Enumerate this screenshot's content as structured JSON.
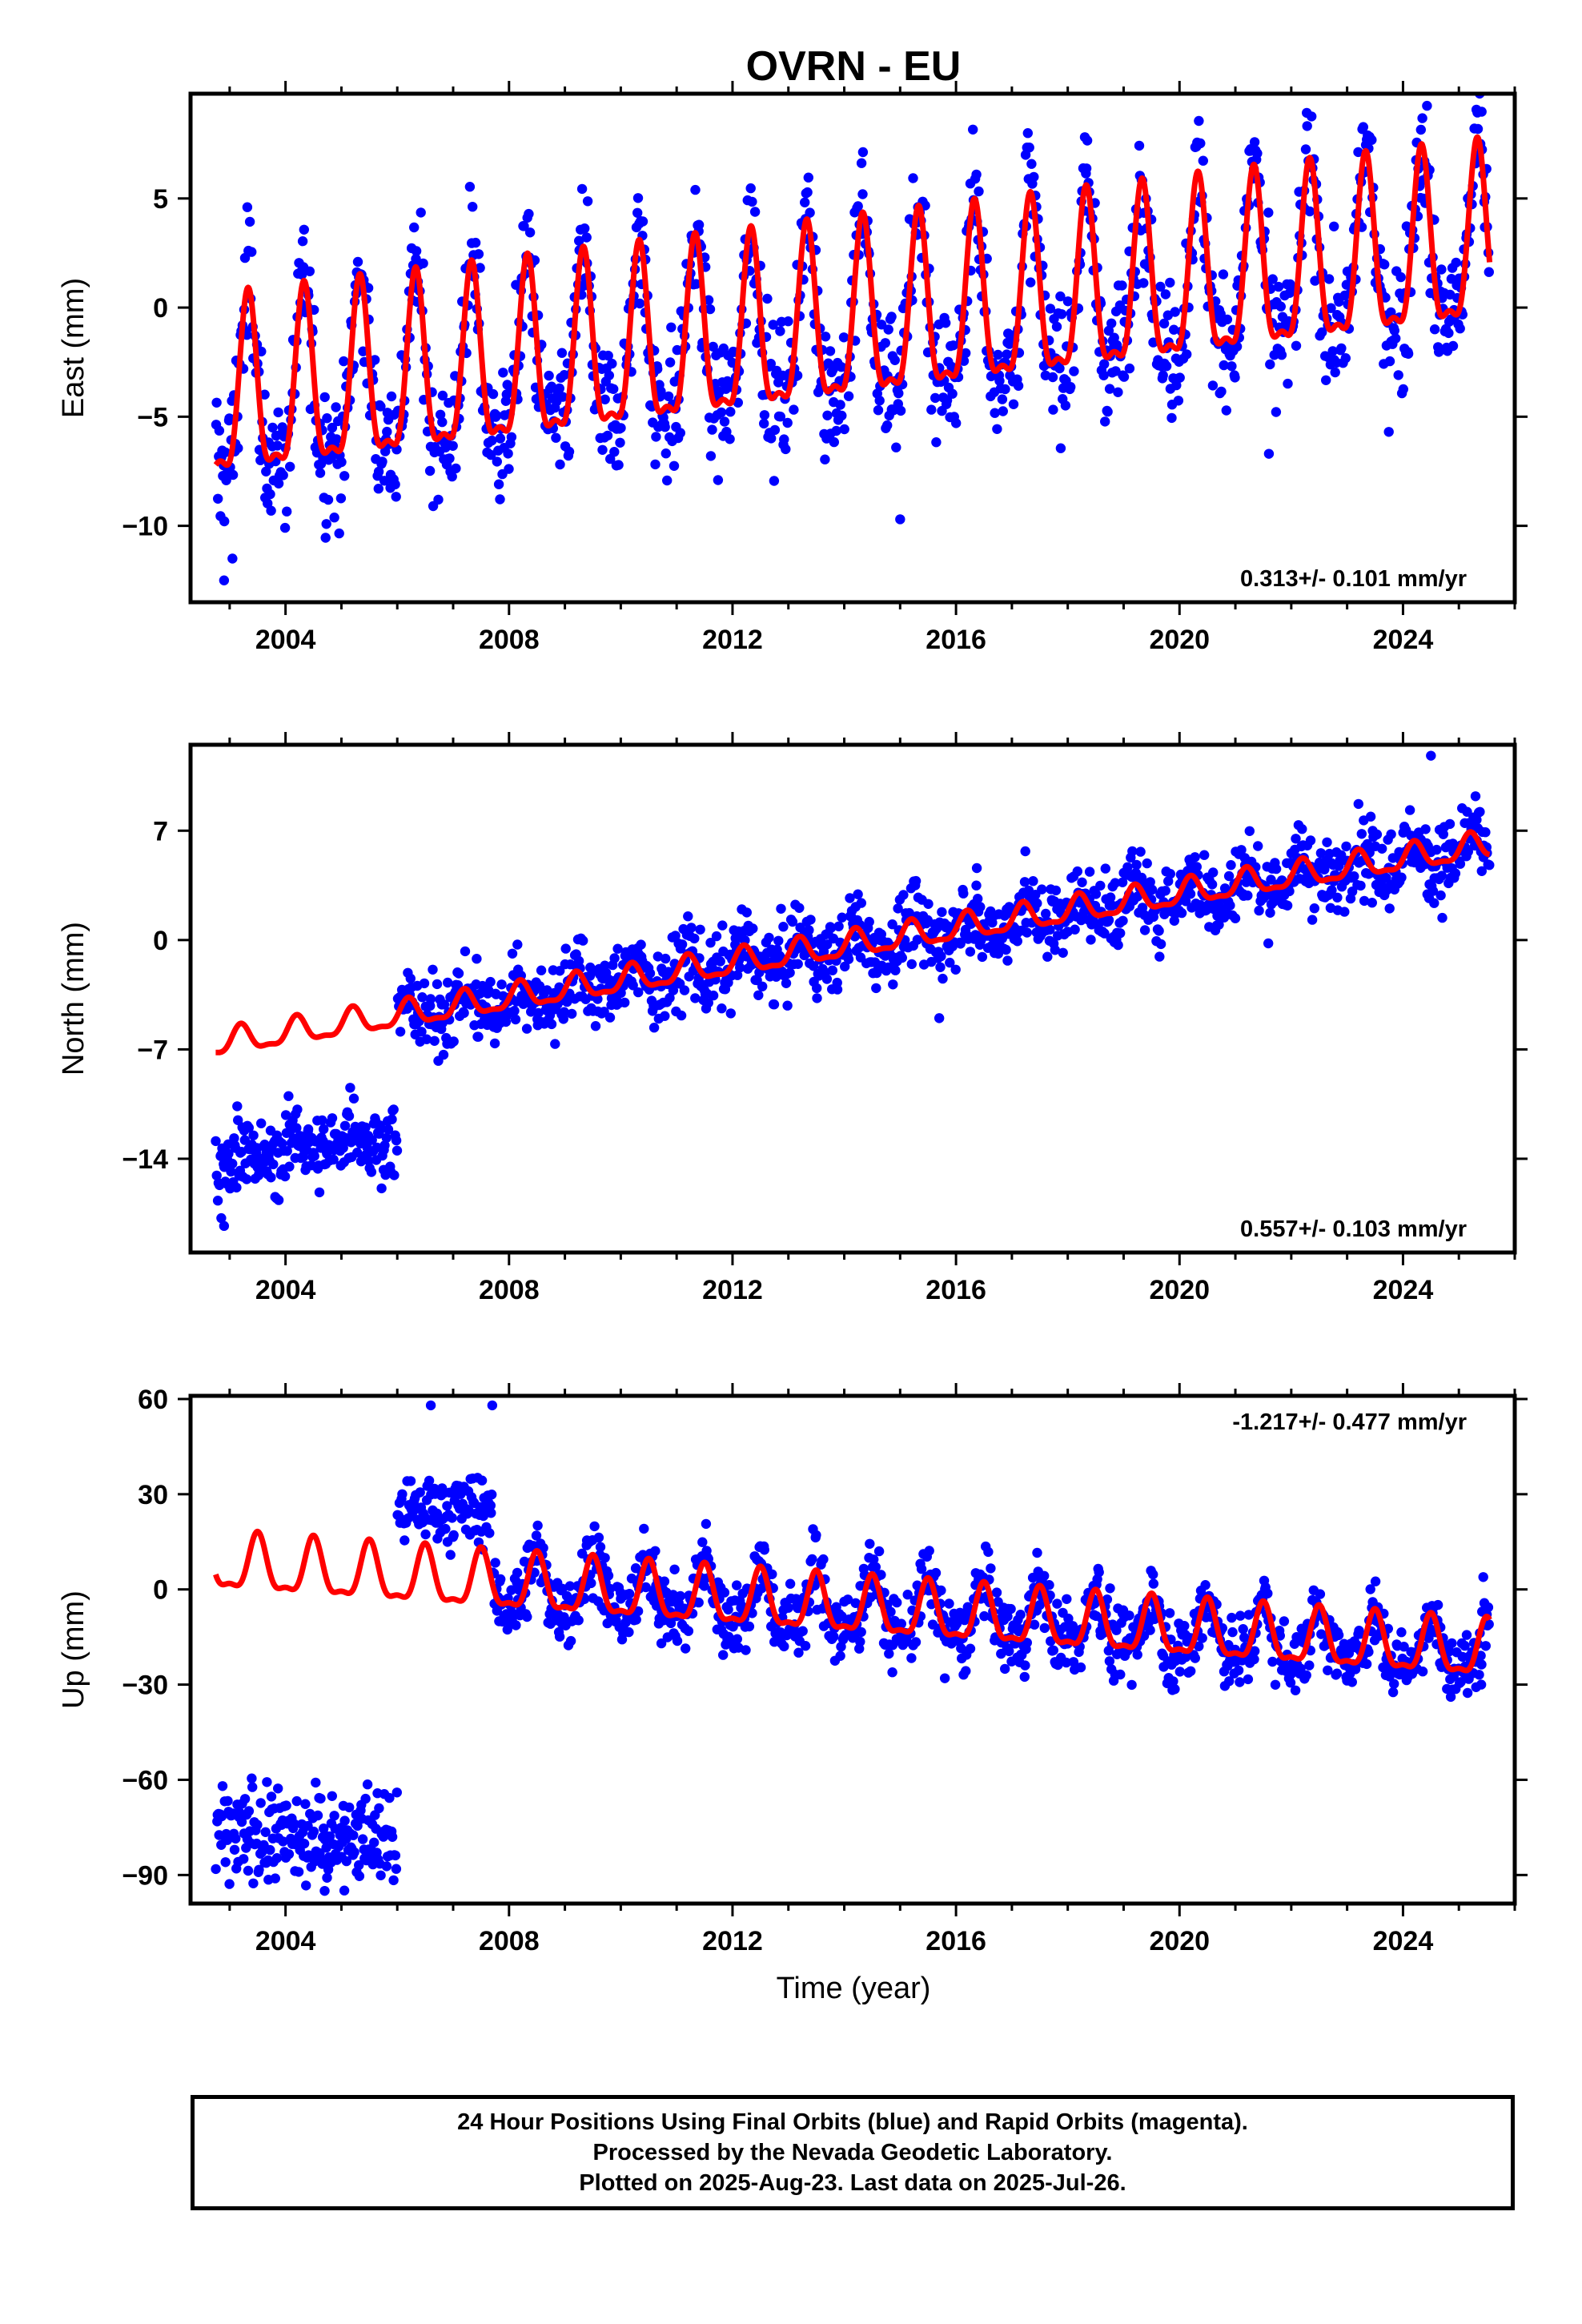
{
  "title": "OVRN - EU",
  "colors": {
    "data_points": "#0000ff",
    "model_line": "#ff0000",
    "frame": "#000000"
  },
  "x_label": "Time (year)",
  "footer": {
    "line1": "24 Hour Positions Using Final Orbits (blue) and Rapid Orbits (magenta).",
    "line2": "Processed by the Nevada Geodetic Laboratory.",
    "line3": "Plotted on 2025-Aug-23. Last data on 2025-Jul-26."
  },
  "chart_data": [
    {
      "type": "scatter",
      "component": "east",
      "ylabel": "East (mm)",
      "rate_label": "0.313+/- 0.101 mm/yr",
      "rate_position": "bottom-right",
      "xlim": [
        2002.3,
        2026.0
      ],
      "ylim": [
        -13.5,
        9.8
      ],
      "x_ticks": [
        2004,
        2008,
        2012,
        2016,
        2020,
        2024
      ],
      "y_ticks": [
        -10,
        -5,
        0,
        5
      ],
      "y_tick_labels": [
        "−10",
        "−5",
        "0",
        "5"
      ],
      "data_range": [
        2002.75,
        2025.55
      ],
      "model": {
        "ref_year": 2014.0,
        "offset": -1.0,
        "rate": 0.313,
        "annual_amp": 3.9,
        "annual_phase_year": 2003.33,
        "segments": []
      },
      "scatter": {
        "noise": 1.5,
        "extra_spread": 1.3,
        "scale": 1.0
      },
      "outliers": [
        {
          "x": 2002.9,
          "y": -12.5
        },
        {
          "x": 2003.05,
          "y": -11.5
        },
        {
          "x": 2015.0,
          "y": -9.7
        },
        {
          "x": 2021.6,
          "y": -6.7
        }
      ]
    },
    {
      "type": "scatter",
      "component": "north",
      "ylabel": "North (mm)",
      "rate_label": "0.557+/- 0.103 mm/yr",
      "rate_position": "bottom-right",
      "xlim": [
        2002.3,
        2026.0
      ],
      "ylim": [
        -20,
        12.5
      ],
      "x_ticks": [
        2004,
        2008,
        2012,
        2016,
        2020,
        2024
      ],
      "y_ticks": [
        -14,
        -7,
        0,
        7
      ],
      "y_tick_labels": [
        "−14",
        "−7",
        "0",
        "7"
      ],
      "data_range": [
        2002.75,
        2025.55
      ],
      "model": {
        "ref_year": 2014.0,
        "offset": -0.4,
        "rate": 0.557,
        "annual_amp": 0.8,
        "annual_phase_year": 2003.2,
        "segments": []
      },
      "scatter": {
        "noise": 1.2,
        "extra_spread": 0.8,
        "scale": 1.0
      },
      "data_offsets": [
        {
          "from": 2002.75,
          "to": 2006.0,
          "shift": -7.5
        }
      ],
      "outliers": [
        {
          "x": 2002.85,
          "y": -17.8
        },
        {
          "x": 2002.9,
          "y": -18.3
        },
        {
          "x": 2015.7,
          "y": -5.0
        },
        {
          "x": 2024.5,
          "y": 11.8
        }
      ]
    },
    {
      "type": "scatter",
      "component": "up",
      "ylabel": "Up (mm)",
      "rate_label": "-1.217+/- 0.477 mm/yr",
      "rate_position": "top-right",
      "xlim": [
        2002.3,
        2026.0
      ],
      "ylim": [
        -99,
        61
      ],
      "x_ticks": [
        2004,
        2008,
        2012,
        2016,
        2020,
        2024
      ],
      "y_ticks": [
        -90,
        -60,
        -30,
        0,
        30,
        60
      ],
      "y_tick_labels": [
        "−90",
        "−60",
        "−30",
        "0",
        "30",
        "60"
      ],
      "data_range": [
        2002.75,
        2025.55
      ],
      "model": {
        "ref_year": 2014.0,
        "offset": -6.0,
        "rate": -1.217,
        "annual_amp": 8.5,
        "annual_phase_year": 2003.5,
        "segments": []
      },
      "scatter": {
        "noise": 5.5,
        "extra_spread": 3.0,
        "scale": 1.0
      },
      "data_offsets": [
        {
          "from": 2002.75,
          "to": 2006.0,
          "shift": -78.0
        },
        {
          "from": 2006.0,
          "to": 2007.7,
          "shift": 25.0
        }
      ],
      "data_gaps": [
        {
          "from": 2002.75,
          "to": 2006.0,
          "extra_noise": 2.0
        }
      ],
      "outliers": [
        {
          "x": 2006.6,
          "y": 58
        },
        {
          "x": 2007.7,
          "y": 58
        },
        {
          "x": 2004.7,
          "y": -95
        },
        {
          "x": 2015.8,
          "y": -28
        },
        {
          "x": 2025.4,
          "y": -30
        }
      ]
    }
  ]
}
